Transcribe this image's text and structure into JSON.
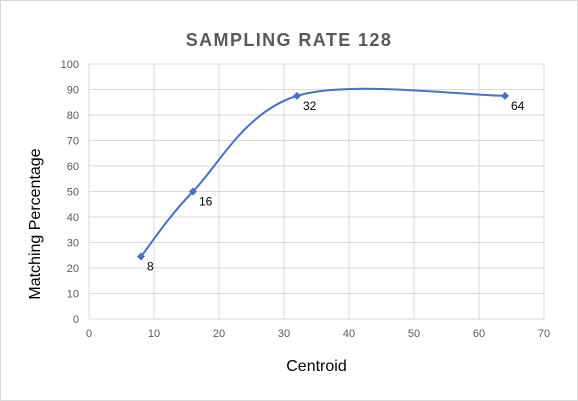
{
  "chart_data": {
    "type": "scatter",
    "title": "SAMPLING RATE 128",
    "xlabel": "Centroid",
    "ylabel": "Matching Percentage",
    "xlim": [
      0,
      70
    ],
    "ylim": [
      0,
      100
    ],
    "x_ticks": [
      0,
      10,
      20,
      30,
      40,
      50,
      60,
      70
    ],
    "y_ticks": [
      0,
      10,
      20,
      30,
      40,
      50,
      60,
      70,
      80,
      90,
      100
    ],
    "grid": true,
    "line_style": "smoothed",
    "series": [
      {
        "x": [
          8,
          16,
          32,
          64
        ],
        "y": [
          24.5,
          50,
          87.5,
          87.5
        ],
        "data_labels": [
          "8",
          "16",
          "32",
          "64"
        ]
      }
    ]
  },
  "colors": {
    "series": "#4472c4",
    "gridline": "#d9d9d9",
    "axis_text": "#595959",
    "title": "#595959",
    "border": "#d9d9d9"
  }
}
